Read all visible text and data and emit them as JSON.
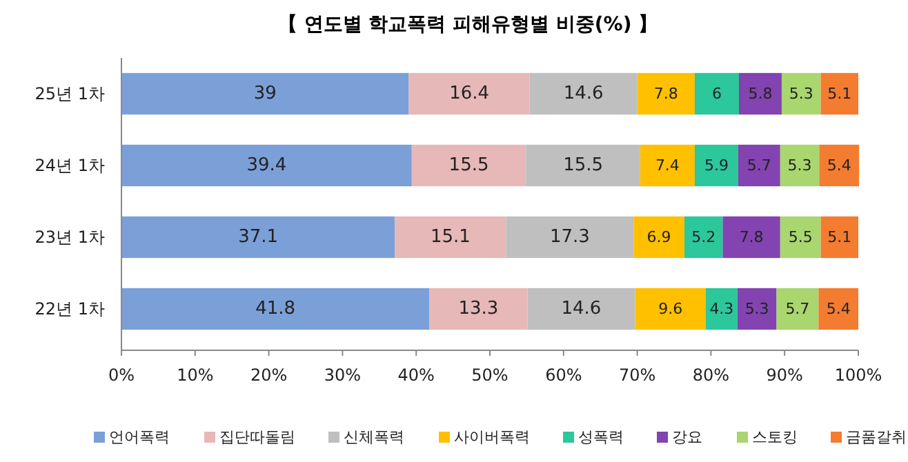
{
  "chart_data": {
    "type": "bar",
    "orientation": "horizontal",
    "stacked": true,
    "title": "【 연도별 학교폭력 피해유형별 비중(%) 】",
    "categories": [
      "25년 1차",
      "24년 1차",
      "23년 1차",
      "22년 1차"
    ],
    "series": [
      {
        "name": "언어폭력",
        "color": "#7ba0d8",
        "values": [
          39,
          39.4,
          37.1,
          41.8
        ]
      },
      {
        "name": "집단따돌림",
        "color": "#e6b8b7",
        "values": [
          16.4,
          15.5,
          15.1,
          13.3
        ]
      },
      {
        "name": "신체폭력",
        "color": "#bfbfbf",
        "values": [
          14.6,
          15.5,
          17.3,
          14.6
        ]
      },
      {
        "name": "사이버폭력",
        "color": "#ffc000",
        "values": [
          7.8,
          7.4,
          6.9,
          9.6
        ]
      },
      {
        "name": "성폭력",
        "color": "#2cc79b",
        "values": [
          6,
          5.9,
          5.2,
          4.3
        ]
      },
      {
        "name": "강요",
        "color": "#8343b0",
        "values": [
          5.8,
          5.7,
          7.8,
          5.3
        ]
      },
      {
        "name": "스토킹",
        "color": "#a9d66e",
        "values": [
          5.3,
          5.3,
          5.5,
          5.7
        ]
      },
      {
        "name": "금품갈취",
        "color": "#f47c30",
        "values": [
          5.1,
          5.4,
          5.1,
          5.4
        ]
      }
    ],
    "xlim": [
      0,
      100
    ],
    "xticks": [
      {
        "value": 0,
        "label": "0%"
      },
      {
        "value": 10,
        "label": "10%"
      },
      {
        "value": 20,
        "label": "20%"
      },
      {
        "value": 30,
        "label": "30%"
      },
      {
        "value": 40,
        "label": "40%"
      },
      {
        "value": 50,
        "label": "50%"
      },
      {
        "value": 60,
        "label": "60%"
      },
      {
        "value": 70,
        "label": "70%"
      },
      {
        "value": 80,
        "label": "80%"
      },
      {
        "value": 90,
        "label": "90%"
      },
      {
        "value": 100,
        "label": "100%"
      }
    ],
    "data_labels": true,
    "legend": "bottom"
  }
}
